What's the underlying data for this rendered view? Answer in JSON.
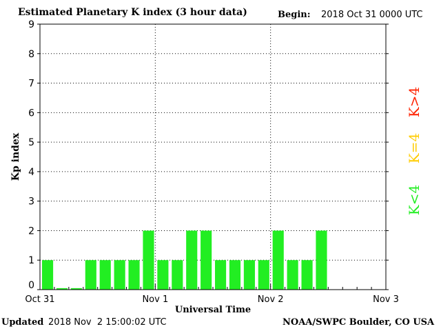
{
  "header": {
    "title": "Estimated Planetary K index (3 hour data)",
    "begin_label": "Begin:",
    "begin_value": "2018 Oct 31 0000 UTC"
  },
  "footer": {
    "updated_label": "Updated",
    "updated_value": "2018 Nov  2 15:00:02 UTC",
    "credit": "NOAA/SWPC Boulder, CO USA"
  },
  "colors": {
    "bar": "#22ee22",
    "axis": "#000000",
    "grid": "#000000",
    "legend_low": "#22ee22",
    "legend_mid": "#ffcc00",
    "legend_high": "#ff2200"
  },
  "chart_data": {
    "type": "bar",
    "title": "Estimated Planetary K index (3 hour data)",
    "xlabel": "Universal Time",
    "ylabel": "Kp index",
    "ylim": [
      0,
      9
    ],
    "yticks": [
      "0",
      "1",
      "2",
      "3",
      "4",
      "5",
      "6",
      "7",
      "8",
      "9"
    ],
    "x_tick_labels": [
      "Oct 31",
      "Nov 1",
      "Nov 2",
      "Nov 3"
    ],
    "slots_total": 24,
    "interval_hours": 3,
    "categories": [
      "Oct 31 00",
      "Oct 31 03",
      "Oct 31 06",
      "Oct 31 09",
      "Oct 31 12",
      "Oct 31 15",
      "Oct 31 18",
      "Oct 31 21",
      "Nov 1 00",
      "Nov 1 03",
      "Nov 1 06",
      "Nov 1 09",
      "Nov 1 12",
      "Nov 1 15",
      "Nov 1 18",
      "Nov 1 21",
      "Nov 2 00",
      "Nov 2 03",
      "Nov 2 06",
      "Nov 2 09"
    ],
    "values": [
      1,
      0.05,
      0.05,
      1,
      1,
      1,
      1,
      2,
      1,
      1,
      2,
      2,
      1,
      1,
      1,
      1,
      2,
      1,
      1,
      2
    ],
    "grid": "dotted",
    "legend": [
      {
        "label": "K<4",
        "color": "#22ee22"
      },
      {
        "label": "K=4",
        "color": "#ffcc00"
      },
      {
        "label": "K>4",
        "color": "#ff2200"
      }
    ]
  }
}
